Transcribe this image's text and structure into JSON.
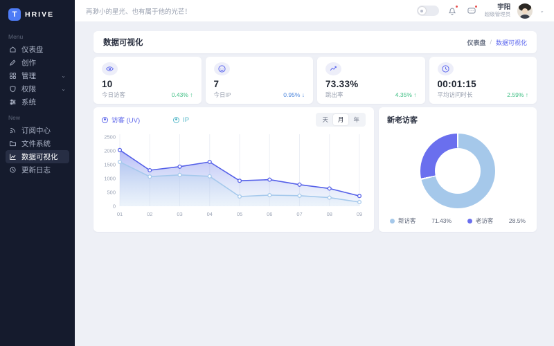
{
  "brand": {
    "logo_letter": "T",
    "name": "HRIVE"
  },
  "sidebar": {
    "section_menu": "Menu",
    "section_new": "New",
    "menu_items": [
      {
        "label": "仪表盘",
        "icon": "home-icon"
      },
      {
        "label": "创作",
        "icon": "pencil-icon"
      },
      {
        "label": "管理",
        "icon": "grid-icon",
        "expandable": true
      },
      {
        "label": "权限",
        "icon": "shield-icon",
        "expandable": true
      },
      {
        "label": "系统",
        "icon": "sliders-icon"
      }
    ],
    "new_items": [
      {
        "label": "订阅中心",
        "icon": "rss-icon"
      },
      {
        "label": "文件系统",
        "icon": "folder-icon"
      },
      {
        "label": "数据可视化",
        "icon": "line-chart-icon",
        "active": true
      },
      {
        "label": "更新日志",
        "icon": "history-icon"
      }
    ],
    "chevron": "⌄"
  },
  "topbar": {
    "greeting": "再渺小的星光、也有属于他的光芒！",
    "user_name": "宇阳",
    "user_role": "超级管理员",
    "chevron": "⌄"
  },
  "page": {
    "title": "数据可视化",
    "breadcrumb_root": "仪表盘",
    "breadcrumb_sep": "/",
    "breadcrumb_current": "数据可视化"
  },
  "stats": [
    {
      "icon": "eye-icon",
      "value": "10",
      "label": "今日访客",
      "delta_display": "0.43% ↑",
      "direction": "up"
    },
    {
      "icon": "smiley-icon",
      "value": "7",
      "label": "今日IP",
      "delta_display": "0.95% ↓",
      "direction": "down"
    },
    {
      "icon": "trend-icon",
      "value": "73.33%",
      "label": "跳出率",
      "delta_display": "4.35% ↑",
      "direction": "up"
    },
    {
      "icon": "clock-icon",
      "value": "00:01:15",
      "label": "平均访问时长",
      "delta_display": "2.59% ↑",
      "direction": "up"
    }
  ],
  "chart_data": [
    {
      "type": "area",
      "x": [
        "01",
        "02",
        "03",
        "04",
        "05",
        "06",
        "07",
        "08",
        "09"
      ],
      "series": [
        {
          "name": "访客 (UV)",
          "values": [
            2030,
            1300,
            1430,
            1600,
            920,
            960,
            780,
            640,
            370
          ],
          "color": "#545fe8",
          "legend_color": "#5a63ea"
        },
        {
          "name": "IP",
          "values": [
            1600,
            1070,
            1130,
            1080,
            350,
            400,
            380,
            310,
            150
          ],
          "color": "#a5c9ec",
          "legend_color": "#56b8c9"
        }
      ],
      "ylim": [
        0,
        2500
      ],
      "yticks": [
        0,
        500,
        1000,
        1500,
        2000,
        2500
      ],
      "grid": "vertical",
      "legend_position": "top-left",
      "time_filters": [
        "天",
        "月",
        "年"
      ],
      "active_filter": "月"
    },
    {
      "type": "pie",
      "title": "新老访客",
      "slices": [
        {
          "label": "新访客",
          "value": 71.43,
          "display": "71.43%",
          "color": "#a5c8ea"
        },
        {
          "label": "老访客",
          "value": 28.5,
          "display": "28.5%",
          "color": "#6a6fee"
        }
      ],
      "legend_position": "bottom"
    }
  ],
  "colors": {
    "accent": "#5b66ee",
    "sidebar_bg": "#151b2d",
    "logo_blue": "#4e7cf6",
    "up_green": "#3fbf84",
    "down_blue": "#4d87dd",
    "badge_red": "#e8504f"
  }
}
